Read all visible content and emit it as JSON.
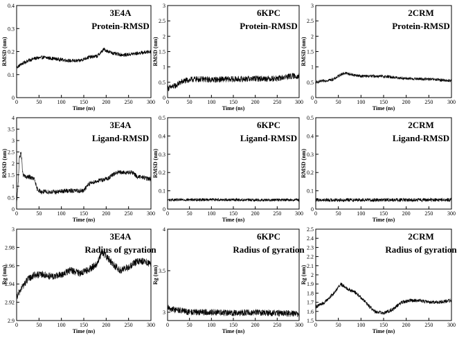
{
  "chart_data": [
    {
      "type": "line",
      "title": "3E4A",
      "subtitle": "Protein-RMSD",
      "xlabel": "Time (ns)",
      "ylabel": "RMSD (nm)",
      "xlim": [
        0,
        300
      ],
      "ylim": [
        0,
        0.4
      ],
      "xticks": [
        0,
        50,
        100,
        150,
        200,
        250,
        300
      ],
      "yticks": [
        0,
        0.1,
        0.2,
        0.3,
        0.4
      ],
      "yticklabels": [
        "0",
        "0.1",
        "0.2",
        "0.3",
        "0.4"
      ],
      "noise": 0.008,
      "series": [
        {
          "x": [
            0,
            10,
            25,
            40,
            60,
            80,
            100,
            120,
            140,
            160,
            180,
            195,
            205,
            220,
            240,
            260,
            280,
            300
          ],
          "y": [
            0.13,
            0.145,
            0.16,
            0.17,
            0.175,
            0.17,
            0.165,
            0.16,
            0.16,
            0.175,
            0.18,
            0.21,
            0.2,
            0.19,
            0.185,
            0.19,
            0.195,
            0.2
          ]
        }
      ]
    },
    {
      "type": "line",
      "title": "6KPC",
      "subtitle": "Protein-RMSD",
      "xlabel": "Time (ns)",
      "ylabel": "RMSD (nm)",
      "xlim": [
        0,
        300
      ],
      "ylim": [
        0,
        3
      ],
      "xticks": [
        0,
        50,
        100,
        150,
        200,
        250,
        300
      ],
      "yticks": [
        0,
        0.5,
        1,
        1.5,
        2,
        2.5,
        3
      ],
      "yticklabels": [
        "0",
        "0.5",
        "1",
        "1.5",
        "2",
        "2.5",
        "3"
      ],
      "noise": 0.1,
      "series": [
        {
          "x": [
            0,
            10,
            20,
            30,
            40,
            60,
            80,
            100,
            130,
            160,
            200,
            250,
            280,
            300
          ],
          "y": [
            0.3,
            0.35,
            0.4,
            0.5,
            0.55,
            0.6,
            0.6,
            0.58,
            0.6,
            0.6,
            0.62,
            0.62,
            0.7,
            0.7
          ]
        }
      ]
    },
    {
      "type": "line",
      "title": "2CRM",
      "subtitle": "Protein-RMSD",
      "xlabel": "Time (ns)",
      "ylabel": "RMSD (nm)",
      "xlim": [
        0,
        300
      ],
      "ylim": [
        0,
        3
      ],
      "xticks": [
        0,
        50,
        100,
        150,
        200,
        250,
        300
      ],
      "yticks": [
        0,
        0.5,
        1,
        1.5,
        2,
        2.5,
        3
      ],
      "yticklabels": [
        "0",
        "0.5",
        "1",
        "1.5",
        "2",
        "2.5",
        "3"
      ],
      "noise": 0.05,
      "series": [
        {
          "x": [
            0,
            20,
            40,
            55,
            65,
            80,
            100,
            130,
            160,
            200,
            250,
            300
          ],
          "y": [
            0.5,
            0.55,
            0.6,
            0.75,
            0.8,
            0.75,
            0.7,
            0.7,
            0.68,
            0.62,
            0.6,
            0.55
          ]
        }
      ]
    },
    {
      "type": "line",
      "title": "3E4A",
      "subtitle": "Ligand-RMSD",
      "xlabel": "Time (ns)",
      "ylabel": "RMSD (nm)",
      "xlim": [
        0,
        300
      ],
      "ylim": [
        0,
        4
      ],
      "xticks": [
        0,
        50,
        100,
        150,
        200,
        250,
        300
      ],
      "yticks": [
        0,
        0.5,
        1,
        1.5,
        2,
        2.5,
        3,
        3.5,
        4
      ],
      "yticklabels": [
        "0",
        "0.5",
        "1",
        "1.5",
        "2",
        "2.5",
        "3",
        "3.5",
        "4"
      ],
      "noise": 0.1,
      "series": [
        {
          "x": [
            0,
            3,
            6,
            10,
            14,
            20,
            30,
            40,
            45,
            55,
            70,
            90,
            110,
            130,
            150,
            160,
            175,
            195,
            205,
            215,
            225,
            240,
            260,
            270,
            280,
            300
          ],
          "y": [
            0.2,
            1.0,
            2.2,
            2.5,
            1.5,
            1.4,
            1.4,
            1.3,
            0.9,
            0.75,
            0.75,
            0.75,
            0.8,
            0.8,
            0.8,
            1.1,
            1.2,
            1.3,
            1.35,
            1.5,
            1.6,
            1.6,
            1.6,
            1.4,
            1.4,
            1.3
          ]
        }
      ]
    },
    {
      "type": "line",
      "title": "6KPC",
      "subtitle": "Ligand-RMSD",
      "xlabel": "Time (ns)",
      "ylabel": "RMSD (nm)",
      "xlim": [
        0,
        300
      ],
      "ylim": [
        0,
        0.5
      ],
      "xticks": [
        0,
        50,
        100,
        150,
        200,
        250,
        300
      ],
      "yticks": [
        0,
        0.1,
        0.2,
        0.3,
        0.4,
        0.5
      ],
      "yticklabels": [
        "0",
        "0.1",
        "0.2",
        "0.3",
        "0.4",
        "0.5"
      ],
      "noise": 0.008,
      "series": [
        {
          "x": [
            0,
            100,
            200,
            300
          ],
          "y": [
            0.05,
            0.052,
            0.05,
            0.05
          ]
        }
      ]
    },
    {
      "type": "line",
      "title": "2CRM",
      "subtitle": "Ligand-RMSD",
      "xlabel": "Time (ns)",
      "ylabel": "RMSD (nm)",
      "xlim": [
        0,
        300
      ],
      "ylim": [
        0,
        0.5
      ],
      "xticks": [
        0,
        50,
        100,
        150,
        200,
        250,
        300
      ],
      "yticks": [
        0,
        0.1,
        0.2,
        0.3,
        0.4,
        0.5
      ],
      "yticklabels": [
        "0",
        "0.1",
        "0.2",
        "0.3",
        "0.4",
        "0.5"
      ],
      "noise": 0.01,
      "series": [
        {
          "x": [
            0,
            100,
            200,
            300
          ],
          "y": [
            0.05,
            0.05,
            0.05,
            0.05
          ]
        }
      ]
    },
    {
      "type": "line",
      "title": "3E4A",
      "subtitle": "Radius of gyration",
      "xlabel": "Time (ns)",
      "ylabel": "Rg (nm)",
      "xlim": [
        0,
        300
      ],
      "ylim": [
        2.9,
        3.0
      ],
      "xticks": [
        0,
        50,
        100,
        150,
        200,
        250,
        300
      ],
      "yticks": [
        2.9,
        2.92,
        2.94,
        2.96,
        2.98,
        3.0
      ],
      "yticklabels": [
        "2.9",
        "2.92",
        "2.94",
        "2.96",
        "2.98",
        "3"
      ],
      "noise": 0.004,
      "series": [
        {
          "x": [
            0,
            10,
            25,
            40,
            60,
            80,
            100,
            120,
            140,
            160,
            180,
            190,
            200,
            215,
            230,
            250,
            270,
            290,
            300
          ],
          "y": [
            2.925,
            2.935,
            2.945,
            2.95,
            2.95,
            2.948,
            2.95,
            2.955,
            2.952,
            2.955,
            2.962,
            2.975,
            2.97,
            2.962,
            2.955,
            2.958,
            2.965,
            2.965,
            2.96
          ]
        }
      ]
    },
    {
      "type": "line",
      "title": "6KPC",
      "subtitle": "Radius of gyration",
      "xlabel": "Time (ns)",
      "ylabel": "Rg (nm)",
      "xlim": [
        0,
        300
      ],
      "ylim": [
        2.9,
        4
      ],
      "xticks": [
        0,
        50,
        100,
        150,
        200,
        250,
        300
      ],
      "yticks": [
        3,
        3.5,
        4
      ],
      "yticklabels": [
        "3",
        "3.5",
        "4"
      ],
      "noise": 0.04,
      "series": [
        {
          "x": [
            0,
            50,
            100,
            150,
            200,
            250,
            300
          ],
          "y": [
            3.05,
            3.0,
            3.0,
            2.99,
            3.0,
            2.99,
            2.98
          ]
        }
      ]
    },
    {
      "type": "line",
      "title": "2CRM",
      "subtitle": "Radius of gyration",
      "xlabel": "Time (ns)",
      "ylabel": "Rg (nm)",
      "xlim": [
        0,
        300
      ],
      "ylim": [
        1.5,
        2.5
      ],
      "xticks": [
        0,
        50,
        100,
        150,
        200,
        250,
        300
      ],
      "yticks": [
        1.5,
        1.6,
        1.7,
        1.8,
        1.9,
        2,
        2.1,
        2.2,
        2.3,
        2.4,
        2.5
      ],
      "yticklabels": [
        "1.5",
        "1.6",
        "1.7",
        "1.8",
        "1.9",
        "2",
        "2.1",
        "2.2",
        "2.3",
        "2.4",
        "2.5"
      ],
      "noise": 0.02,
      "series": [
        {
          "x": [
            0,
            20,
            40,
            55,
            70,
            90,
            110,
            130,
            150,
            170,
            190,
            210,
            230,
            250,
            270,
            300
          ],
          "y": [
            1.65,
            1.7,
            1.8,
            1.9,
            1.85,
            1.8,
            1.7,
            1.6,
            1.58,
            1.62,
            1.7,
            1.72,
            1.72,
            1.7,
            1.7,
            1.72
          ]
        }
      ]
    }
  ]
}
